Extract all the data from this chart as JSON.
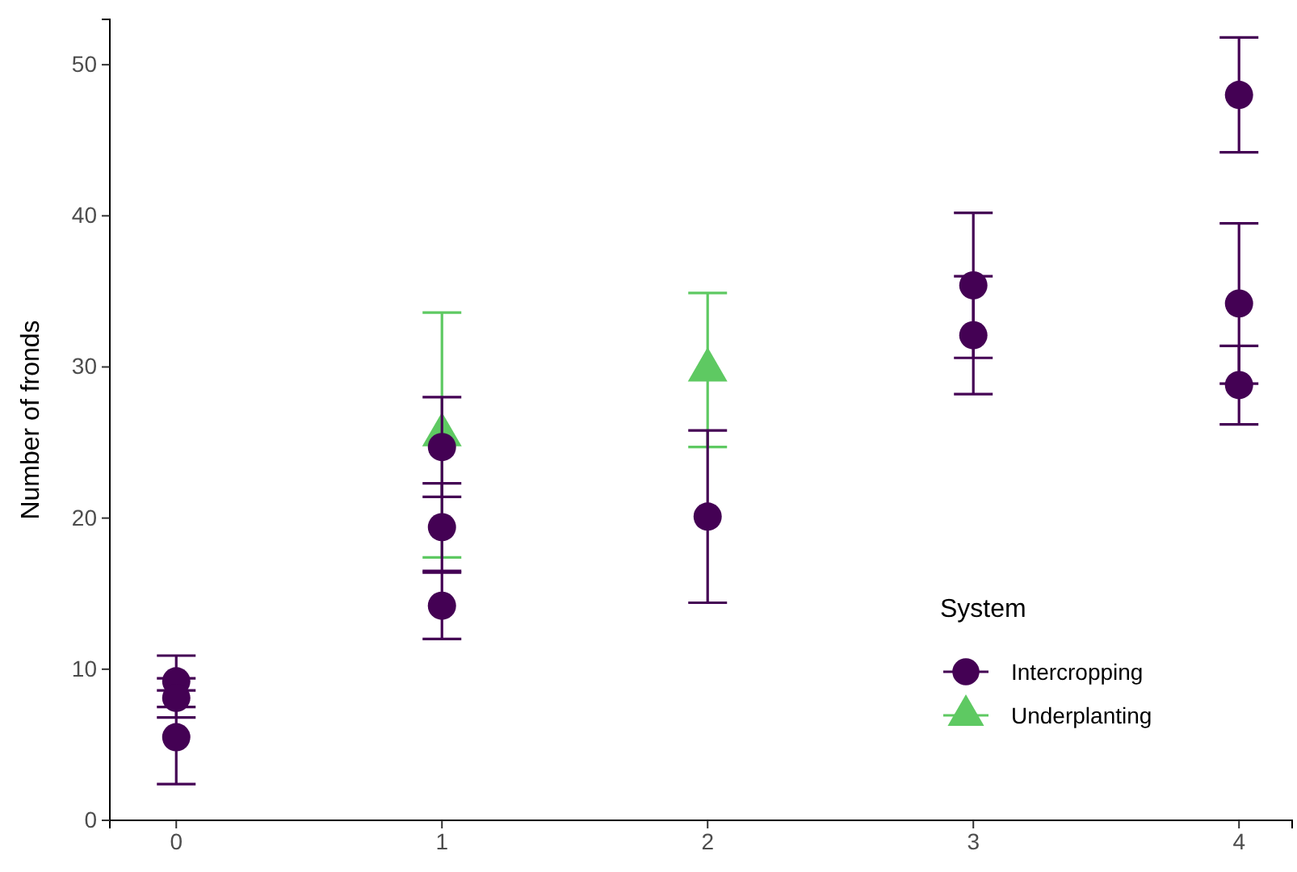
{
  "chart_data": {
    "type": "scatter",
    "ylabel": "Number of fronds",
    "legend_title": "System",
    "legend": "bottom right",
    "grid": false,
    "xlim": [
      -0.25,
      4.2
    ],
    "xticks": [
      0,
      1,
      2,
      3,
      4
    ],
    "ylim": [
      0,
      53
    ],
    "yticks": [
      0,
      10,
      20,
      30,
      40,
      50
    ],
    "series": [
      {
        "name": "Intercropping",
        "color": "#440154",
        "marker": "circle",
        "x": [
          0,
          0,
          0,
          1,
          1,
          1,
          2,
          3,
          3,
          4,
          4,
          4
        ],
        "values": [
          9.2,
          8.1,
          5.5,
          24.7,
          19.4,
          14.2,
          20.1,
          35.4,
          32.1,
          48.0,
          34.2,
          28.8
        ],
        "errors": [
          1.7,
          1.3,
          3.1,
          3.3,
          2.9,
          2.2,
          5.7,
          4.8,
          3.9,
          3.8,
          5.3,
          2.6
        ]
      },
      {
        "name": "Underplanting",
        "color": "#5ec962",
        "marker": "triangle",
        "x": [
          1,
          2
        ],
        "values": [
          25.5,
          29.8
        ],
        "errors": [
          8.1,
          5.1
        ]
      }
    ]
  }
}
